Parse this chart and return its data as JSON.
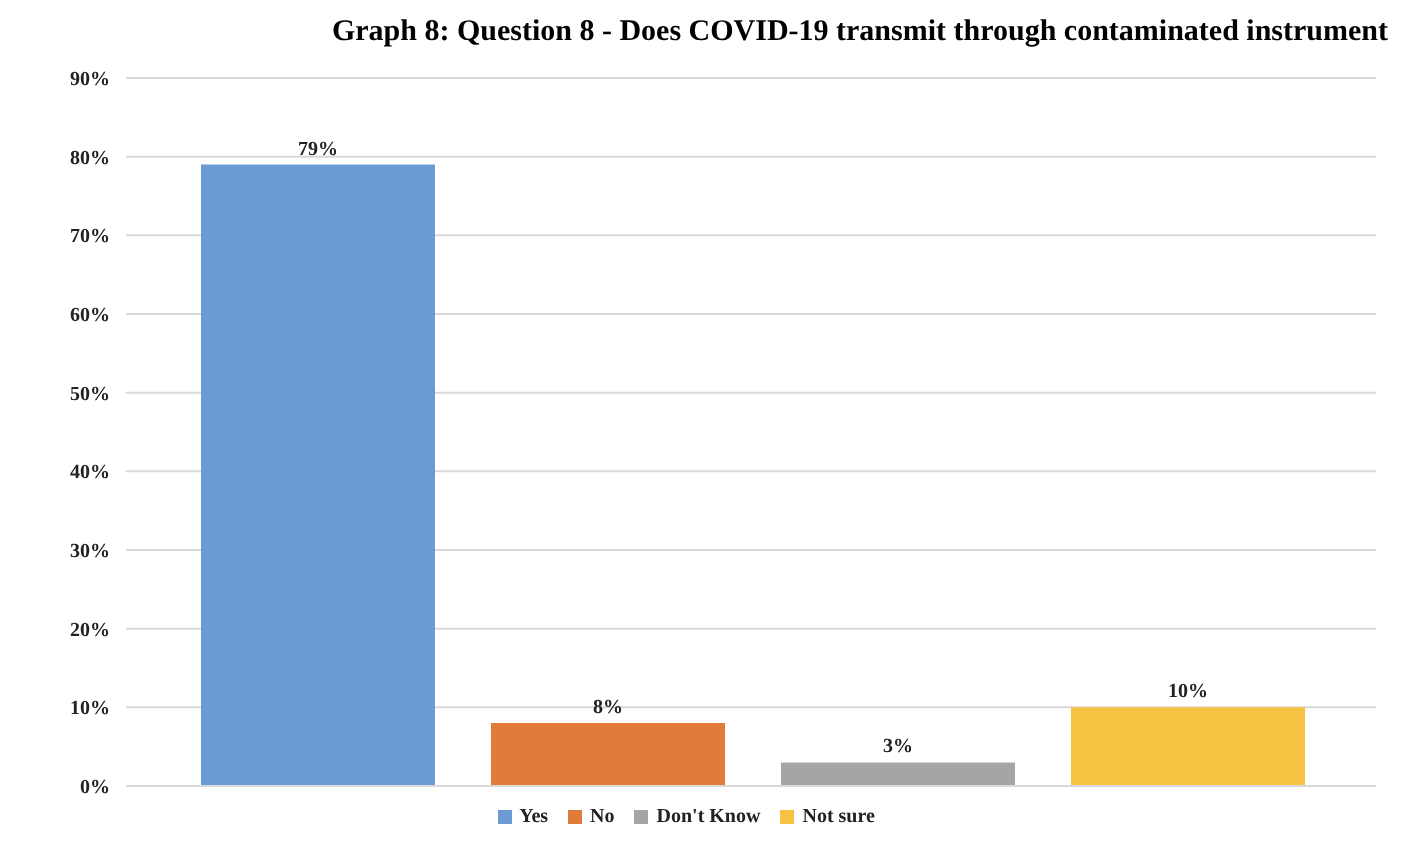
{
  "chart_data": {
    "type": "bar",
    "title": "Graph 8: Question 8 - Does COVID-19 transmit through contaminated instrument",
    "categories": [
      null
    ],
    "series": [
      {
        "name": "Yes",
        "color": "#6a9bd4",
        "values": [
          79
        ],
        "value_labels": [
          "79%"
        ]
      },
      {
        "name": "No",
        "color": "#e07b39",
        "values": [
          8
        ],
        "value_labels": [
          "8%"
        ]
      },
      {
        "name": "Don't Know",
        "color": "#a5a5a5",
        "values": [
          3
        ],
        "value_labels": [
          "3%"
        ]
      },
      {
        "name": "Not sure",
        "color": "#f5c242",
        "values": [
          10
        ],
        "value_labels": [
          "10%"
        ]
      }
    ],
    "ylim": [
      0,
      90
    ],
    "yticks": [
      {
        "value": 0,
        "label": "0%"
      },
      {
        "value": 10,
        "label": "10%"
      },
      {
        "value": 20,
        "label": "20%"
      },
      {
        "value": 30,
        "label": "30%"
      },
      {
        "value": 40,
        "label": "40%"
      },
      {
        "value": 50,
        "label": "50%"
      },
      {
        "value": 60,
        "label": "60%"
      },
      {
        "value": 70,
        "label": "70%"
      },
      {
        "value": 80,
        "label": "80%"
      },
      {
        "value": 90,
        "label": "90%"
      }
    ],
    "grid": "y",
    "legend": "bottom"
  }
}
